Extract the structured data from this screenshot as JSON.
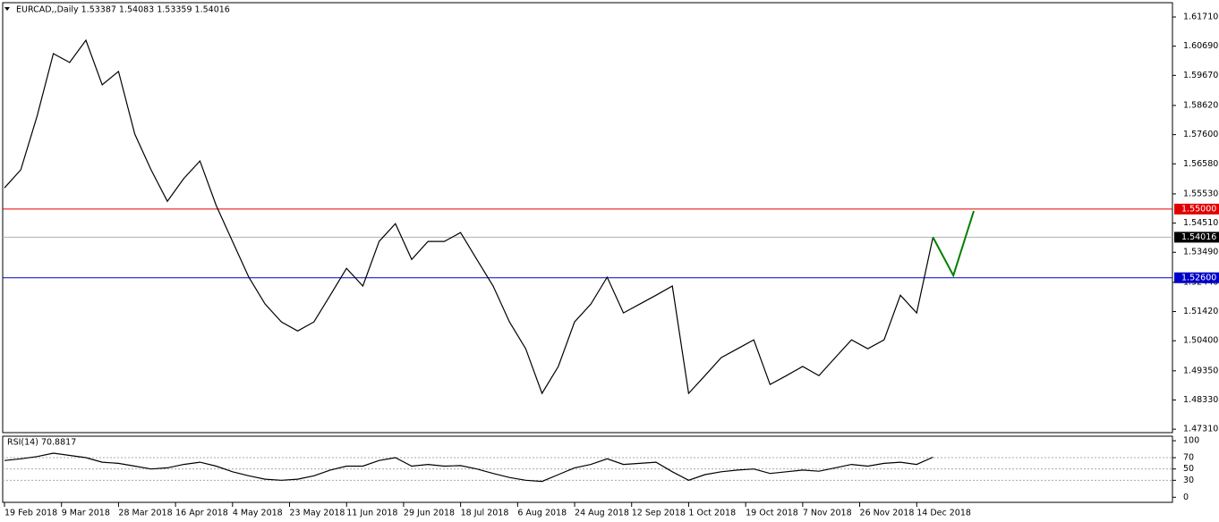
{
  "chart_data": [
    {
      "type": "line",
      "title": "EURCAD,,Daily  1.53387 1.54083 1.53359 1.54016",
      "x": [
        0,
        4,
        8,
        12,
        16,
        20,
        24,
        28,
        32,
        36,
        40,
        44,
        48,
        52,
        56,
        60,
        64,
        68,
        72,
        76,
        80,
        84,
        88,
        92,
        96,
        100,
        104,
        108,
        112,
        116,
        120,
        124,
        128,
        132,
        136,
        140,
        144,
        148,
        152,
        156,
        160,
        164,
        168,
        172,
        176,
        180,
        184,
        188,
        192,
        196,
        200,
        204,
        208,
        212,
        216,
        220,
        224,
        228
      ],
      "series": [
        {
          "color": "#000000",
          "values": [
            1.5574,
            1.5637,
            1.5824,
            1.6043,
            1.6012,
            1.609,
            1.5934,
            1.5981,
            1.5762,
            1.5637,
            1.5527,
            1.5606,
            1.5668,
            1.5512,
            1.5387,
            1.5262,
            1.5168,
            1.5106,
            1.5074,
            1.5106,
            1.5199,
            1.5293,
            1.5231,
            1.5387,
            1.5449,
            1.5324,
            1.5387,
            1.5387,
            1.5418,
            1.5324,
            1.5231,
            1.5106,
            1.5012,
            1.4856,
            1.495,
            1.5106,
            1.5168,
            1.5262,
            1.5137,
            1.5168,
            1.5199,
            1.5231,
            1.4856,
            1.4918,
            1.4981,
            1.5012,
            1.5043,
            1.4887,
            1.4918,
            1.495,
            1.4918,
            1.4981,
            1.5043,
            1.5012,
            1.5043,
            1.5199,
            1.5137,
            1.54016
          ]
        }
      ],
      "projection": {
        "color": "#008000",
        "x": [
          228,
          233,
          238
        ],
        "values": [
          1.54016,
          1.5268,
          1.5493
        ]
      },
      "levels": [
        {
          "value": 1.55,
          "label": "1.55000",
          "color": "#e00000"
        },
        {
          "value": 1.526,
          "label": "1.52600",
          "color": "#0000c8"
        },
        {
          "value": 1.54016,
          "label": "1.54016",
          "color": "#000000"
        }
      ],
      "xlim": [
        -1.1,
        286.8
      ],
      "ylim": [
        1.4719,
        1.6221
      ],
      "yticks": [
        {
          "value": 1.6171,
          "label": "1.61710"
        },
        {
          "value": 1.6069,
          "label": "1.60690"
        },
        {
          "value": 1.5967,
          "label": "1.59670"
        },
        {
          "value": 1.5862,
          "label": "1.58620"
        },
        {
          "value": 1.576,
          "label": "1.57600"
        },
        {
          "value": 1.5658,
          "label": "1.56580"
        },
        {
          "value": 1.5553,
          "label": "1.55530"
        },
        {
          "value": 1.5451,
          "label": "1.54510"
        },
        {
          "value": 1.5349,
          "label": "1.53490"
        },
        {
          "value": 1.5244,
          "label": "1.52440"
        },
        {
          "value": 1.5142,
          "label": "1.51420"
        },
        {
          "value": 1.504,
          "label": "1.50400"
        },
        {
          "value": 1.4935,
          "label": "1.49350"
        },
        {
          "value": 1.4833,
          "label": "1.48330"
        },
        {
          "value": 1.4731,
          "label": "1.47310"
        }
      ],
      "xticks": [
        {
          "value": 0,
          "label": "19 Feb 2018"
        },
        {
          "value": 14,
          "label": "9 Mar 2018"
        },
        {
          "value": 28,
          "label": "28 Mar 2018"
        },
        {
          "value": 42,
          "label": "16 Apr 2018"
        },
        {
          "value": 56,
          "label": "4 May 2018"
        },
        {
          "value": 70,
          "label": "23 May 2018"
        },
        {
          "value": 84,
          "label": "11 Jun 2018"
        },
        {
          "value": 98,
          "label": "29 Jun 2018"
        },
        {
          "value": 112,
          "label": "18 Jul 2018"
        },
        {
          "value": 126,
          "label": "6 Aug 2018"
        },
        {
          "value": 140,
          "label": "24 Aug 2018"
        },
        {
          "value": 154,
          "label": "12 Sep 2018"
        },
        {
          "value": 168,
          "label": "1 Oct 2018"
        },
        {
          "value": 182,
          "label": "19 Oct 2018"
        },
        {
          "value": 196,
          "label": "7 Nov 2018"
        },
        {
          "value": 210,
          "label": "26 Nov 2018"
        },
        {
          "value": 224,
          "label": "14 Dec 2018"
        }
      ]
    },
    {
      "type": "line",
      "title": "RSI(14) 70.8817",
      "x": [
        0,
        4,
        8,
        12,
        16,
        20,
        24,
        28,
        32,
        36,
        40,
        44,
        48,
        52,
        56,
        60,
        64,
        68,
        72,
        76,
        80,
        84,
        88,
        92,
        96,
        100,
        104,
        108,
        112,
        116,
        120,
        124,
        128,
        132,
        136,
        140,
        144,
        148,
        152,
        156,
        160,
        164,
        168,
        172,
        176,
        180,
        184,
        188,
        192,
        196,
        200,
        204,
        208,
        212,
        216,
        220,
        224,
        228
      ],
      "series": [
        {
          "color": "#000000",
          "values": [
            65,
            68,
            72,
            78,
            74,
            70,
            62,
            60,
            55,
            50,
            52,
            58,
            62,
            55,
            45,
            38,
            32,
            30,
            32,
            38,
            48,
            55,
            55,
            65,
            70,
            55,
            58,
            55,
            56,
            50,
            42,
            35,
            30,
            28,
            40,
            52,
            58,
            68,
            58,
            60,
            62,
            45,
            30,
            40,
            45,
            48,
            50,
            42,
            45,
            48,
            46,
            52,
            58,
            55,
            60,
            62,
            58,
            70.88
          ]
        }
      ],
      "xlim": [
        -1.1,
        286.8
      ],
      "ylim": [
        -9,
        108
      ],
      "yticks": [
        100,
        70,
        50,
        30,
        0
      ],
      "levels": [
        70,
        50,
        30
      ]
    }
  ]
}
